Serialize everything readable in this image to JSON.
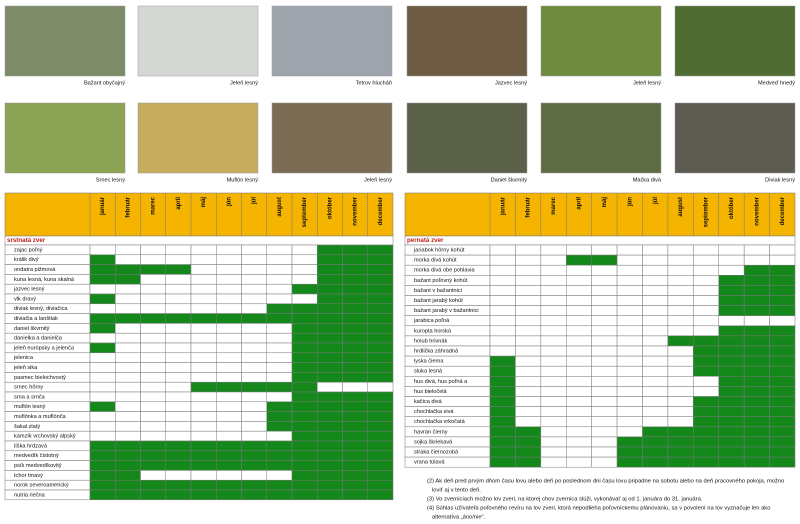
{
  "photos": [
    {
      "caption": "Bažant obyčajný"
    },
    {
      "caption": "Jeleň lesný"
    },
    {
      "caption": "Tetrov hlucháň"
    },
    {
      "caption": "Jazvec lesný"
    },
    {
      "caption": "Jeleň lesný"
    },
    {
      "caption": "Medveď hnedý"
    },
    {
      "caption": "Srnec lesný"
    },
    {
      "caption": "Muflón lesný"
    },
    {
      "caption": "Jeleň lesný"
    },
    {
      "caption": "Daniel škvrnitý"
    },
    {
      "caption": "Mačka divá"
    },
    {
      "caption": "Diviak lesný"
    }
  ],
  "months": [
    "január",
    "február",
    "marec",
    "apríl",
    "máj",
    "jún",
    "júl",
    "august",
    "september",
    "október",
    "november",
    "december"
  ],
  "tables": [
    {
      "section": "srstnatá zver",
      "rows": [
        {
          "label": "zajac poľný",
          "open": [
            0,
            0,
            0,
            0,
            0,
            0,
            0,
            0,
            0,
            1,
            1,
            1
          ]
        },
        {
          "label": "králik divý",
          "open": [
            1,
            0,
            0,
            0,
            0,
            0,
            0,
            0,
            0,
            1,
            1,
            1
          ]
        },
        {
          "label": "ondatra pižmová",
          "open": [
            1,
            1,
            1,
            1,
            0,
            0,
            0,
            0,
            0,
            1,
            1,
            1
          ]
        },
        {
          "label": "kuna lesná, kuna skalná",
          "open": [
            1,
            1,
            0,
            0,
            0,
            0,
            0,
            0,
            0,
            1,
            1,
            1
          ]
        },
        {
          "label": "jazvec lesný",
          "open": [
            0,
            0,
            0,
            0,
            0,
            0,
            0,
            0,
            1,
            1,
            1,
            1
          ]
        },
        {
          "label": "vlk dravý",
          "open": [
            1,
            0,
            0,
            0,
            0,
            0,
            0,
            0,
            0,
            1,
            1,
            1
          ]
        },
        {
          "label": "diviak lesný, diviačica",
          "open": [
            0,
            0,
            0,
            0,
            0,
            0,
            0,
            1,
            1,
            1,
            1,
            1
          ]
        },
        {
          "label": "diviačia a lanštiak",
          "open": [
            1,
            1,
            1,
            1,
            1,
            1,
            1,
            1,
            1,
            1,
            1,
            1
          ]
        },
        {
          "label": "daniel škvrnitý",
          "open": [
            1,
            0,
            0,
            0,
            0,
            0,
            0,
            0,
            1,
            1,
            1,
            1
          ]
        },
        {
          "label": "danielka a danielča",
          "open": [
            0,
            0,
            0,
            0,
            0,
            0,
            0,
            0,
            1,
            1,
            1,
            1
          ]
        },
        {
          "label": "jeleň európsky a jelenča",
          "open": [
            1,
            0,
            0,
            0,
            0,
            0,
            0,
            0,
            1,
            1,
            1,
            1
          ]
        },
        {
          "label": "jelenica",
          "open": [
            0,
            0,
            0,
            0,
            0,
            0,
            0,
            0,
            1,
            1,
            1,
            1
          ]
        },
        {
          "label": "jeleň sika",
          "open": [
            0,
            0,
            0,
            0,
            0,
            0,
            0,
            0,
            1,
            1,
            1,
            1
          ]
        },
        {
          "label": "pasmec bielochvostý",
          "open": [
            0,
            0,
            0,
            0,
            0,
            0,
            0,
            0,
            1,
            1,
            1,
            1
          ]
        },
        {
          "label": "srnec hôrny",
          "open": [
            0,
            0,
            0,
            0,
            1,
            1,
            1,
            1,
            1,
            0,
            0,
            0
          ]
        },
        {
          "label": "srna a srnča",
          "open": [
            0,
            0,
            0,
            0,
            0,
            0,
            0,
            0,
            1,
            1,
            1,
            1
          ]
        },
        {
          "label": "muflón lesný",
          "open": [
            1,
            0,
            0,
            0,
            0,
            0,
            0,
            1,
            1,
            1,
            1,
            1
          ]
        },
        {
          "label": "muflónka a muflónča",
          "open": [
            0,
            0,
            0,
            0,
            0,
            0,
            0,
            1,
            1,
            1,
            1,
            1
          ]
        },
        {
          "label": "šakal zlatý",
          "open": [
            0,
            0,
            0,
            0,
            0,
            0,
            0,
            1,
            1,
            1,
            1,
            1
          ]
        },
        {
          "label": "kamzík vrchovský alpský",
          "open": [
            0,
            0,
            0,
            0,
            0,
            0,
            0,
            0,
            1,
            1,
            1,
            1
          ]
        },
        {
          "label": "líška hrdzavá",
          "open": [
            1,
            1,
            1,
            1,
            1,
            1,
            1,
            1,
            1,
            1,
            1,
            1
          ]
        },
        {
          "label": "medvedík čistotný",
          "open": [
            1,
            1,
            1,
            1,
            1,
            1,
            1,
            1,
            1,
            1,
            1,
            1
          ]
        },
        {
          "label": "psík medvedíkovitý",
          "open": [
            1,
            1,
            1,
            1,
            1,
            1,
            1,
            1,
            1,
            1,
            1,
            1
          ]
        },
        {
          "label": "tchor tmavý",
          "open": [
            1,
            1,
            0,
            0,
            0,
            0,
            0,
            0,
            1,
            1,
            1,
            1
          ]
        },
        {
          "label": "norok severoamerický",
          "open": [
            1,
            1,
            1,
            1,
            1,
            1,
            1,
            1,
            1,
            1,
            1,
            1
          ]
        },
        {
          "label": "nutria riečna",
          "open": [
            1,
            1,
            1,
            1,
            1,
            1,
            1,
            1,
            1,
            1,
            1,
            1
          ]
        }
      ]
    },
    {
      "section": "pernatá zver",
      "rows": [
        {
          "label": "jariabok hôrny kohút",
          "open": [
            0,
            0,
            0,
            0,
            0,
            0,
            0,
            0,
            0,
            0,
            0,
            0
          ]
        },
        {
          "label": "morka divá kohút",
          "open": [
            0,
            0,
            0,
            1,
            1,
            0,
            0,
            0,
            0,
            0,
            0,
            0
          ]
        },
        {
          "label": "morka divá obe pohlavia",
          "open": [
            0,
            0,
            0,
            0,
            0,
            0,
            0,
            0,
            0,
            0,
            1,
            1
          ]
        },
        {
          "label": "bažant poľovný kohút",
          "open": [
            0,
            0,
            0,
            0,
            0,
            0,
            0,
            0,
            0,
            1,
            1,
            1
          ]
        },
        {
          "label": "bažant v bažantnici",
          "open": [
            0,
            0,
            0,
            0,
            0,
            0,
            0,
            0,
            0,
            1,
            1,
            1
          ]
        },
        {
          "label": "bažant jarabý kohút",
          "open": [
            0,
            0,
            0,
            0,
            0,
            0,
            0,
            0,
            0,
            1,
            1,
            1
          ]
        },
        {
          "label": "bažant jarabý v bažantnici",
          "open": [
            0,
            0,
            0,
            0,
            0,
            0,
            0,
            0,
            0,
            1,
            1,
            1
          ]
        },
        {
          "label": "jarabica poľná",
          "open": [
            0,
            0,
            0,
            0,
            0,
            0,
            0,
            0,
            0,
            0,
            0,
            0
          ]
        },
        {
          "label": "kuropta horská",
          "open": [
            0,
            0,
            0,
            0,
            0,
            0,
            0,
            0,
            0,
            1,
            1,
            1
          ]
        },
        {
          "label": "holub hrivnák",
          "open": [
            0,
            0,
            0,
            0,
            0,
            0,
            0,
            1,
            1,
            1,
            1,
            1
          ]
        },
        {
          "label": "hrdlička záhradná",
          "open": [
            0,
            0,
            0,
            0,
            0,
            0,
            0,
            0,
            1,
            1,
            1,
            1
          ]
        },
        {
          "label": "lyska čierna",
          "open": [
            1,
            0,
            0,
            0,
            0,
            0,
            0,
            0,
            1,
            1,
            1,
            1
          ]
        },
        {
          "label": "sluka lesná",
          "open": [
            1,
            0,
            0,
            0,
            0,
            0,
            0,
            0,
            1,
            1,
            1,
            1
          ]
        },
        {
          "label": "hus divá, hus poľná a",
          "open": [
            1,
            0,
            0,
            0,
            0,
            0,
            0,
            0,
            0,
            1,
            1,
            1
          ]
        },
        {
          "label": "hus bieločelá",
          "open": [
            1,
            0,
            0,
            0,
            0,
            0,
            0,
            0,
            0,
            1,
            1,
            1
          ]
        },
        {
          "label": "kačica divá",
          "open": [
            1,
            0,
            0,
            0,
            0,
            0,
            0,
            0,
            1,
            1,
            1,
            1
          ]
        },
        {
          "label": "chochlačka sivá",
          "open": [
            1,
            0,
            0,
            0,
            0,
            0,
            0,
            0,
            1,
            1,
            1,
            1
          ]
        },
        {
          "label": "chochlačka vrkočatá",
          "open": [
            1,
            0,
            0,
            0,
            0,
            0,
            0,
            0,
            1,
            1,
            1,
            1
          ]
        },
        {
          "label": "havran čierny",
          "open": [
            1,
            1,
            0,
            0,
            0,
            0,
            1,
            1,
            1,
            1,
            1,
            1
          ]
        },
        {
          "label": "sojka škriekavá",
          "open": [
            1,
            1,
            0,
            0,
            0,
            1,
            1,
            1,
            1,
            1,
            1,
            1
          ]
        },
        {
          "label": "straka čiernozobá",
          "open": [
            1,
            1,
            0,
            0,
            0,
            1,
            1,
            1,
            1,
            1,
            1,
            1
          ]
        },
        {
          "label": "vrana túlavá",
          "open": [
            1,
            1,
            0,
            0,
            0,
            1,
            1,
            1,
            1,
            1,
            1,
            1
          ]
        }
      ]
    }
  ],
  "notes": [
    "(2) Ak deň pred prvým dňom času lovu alebo deň po poslednom dni času lovu pripadne na sobotu alebo na deň pracovného pokoja, možno",
    "loviť aj v tento deň.",
    "(3) Vo zverniciach možno lov zveri, na ktorej chov zvernica slúži, vykonávať aj od 1. januára do 31. januára.",
    "(4) Súhlas užívateľa poľovného revíru na lov zveri, ktorá nepodlieha poľovníckemu plánovaniu, sa v povolení na lov vyznačuje len ako",
    "alternatíva „áno/nie“."
  ]
}
